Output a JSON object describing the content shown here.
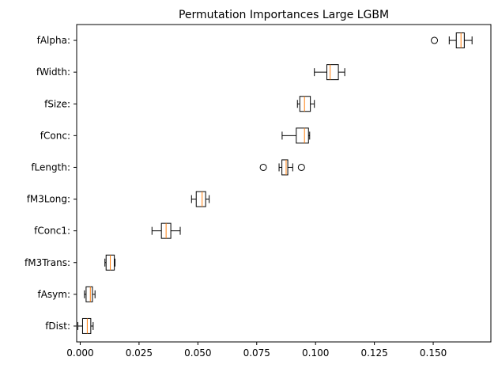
{
  "chart_data": {
    "type": "box",
    "orientation": "horizontal",
    "title": "Permutation Importances Large LGBM",
    "xlabel": "",
    "ylabel": "",
    "xlim": [
      -0.0015,
      0.1745
    ],
    "x_ticks": [
      0.0,
      0.025,
      0.05,
      0.075,
      0.1,
      0.125,
      0.15
    ],
    "x_tick_labels": [
      "0.000",
      "0.025",
      "0.050",
      "0.075",
      "0.100",
      "0.125",
      "0.150"
    ],
    "grid": false,
    "categories": [
      "fAlpha:",
      "fWidth:",
      "fSize:",
      "fConc:",
      "fLength:",
      "fM3Long:",
      "fConc1:",
      "fM3Trans:",
      "fAsym:",
      "fDist:"
    ],
    "boxes": [
      {
        "label": "fAlpha:",
        "whisker_low": 0.1568,
        "q1": 0.1598,
        "median": 0.1618,
        "q3": 0.1632,
        "whisker_high": 0.1665,
        "outliers": [
          0.1505
        ]
      },
      {
        "label": "fWidth:",
        "whisker_low": 0.0995,
        "q1": 0.1048,
        "median": 0.1062,
        "q3": 0.1097,
        "whisker_high": 0.1124,
        "outliers": []
      },
      {
        "label": "fSize:",
        "whisker_low": 0.0923,
        "q1": 0.0933,
        "median": 0.0953,
        "q3": 0.0978,
        "whisker_high": 0.0995,
        "outliers": []
      },
      {
        "label": "fConc:",
        "whisker_low": 0.0858,
        "q1": 0.0918,
        "median": 0.0953,
        "q3": 0.097,
        "whisker_high": 0.0975,
        "outliers": []
      },
      {
        "label": "fLength:",
        "whisker_low": 0.0845,
        "q1": 0.0857,
        "median": 0.0875,
        "q3": 0.0882,
        "whisker_high": 0.0903,
        "outliers": [
          0.0778,
          0.094
        ]
      },
      {
        "label": "fM3Long:",
        "whisker_low": 0.0473,
        "q1": 0.0493,
        "median": 0.0518,
        "q3": 0.0533,
        "whisker_high": 0.0548,
        "outliers": []
      },
      {
        "label": "fConc1:",
        "whisker_low": 0.0305,
        "q1": 0.0345,
        "median": 0.0365,
        "q3": 0.0385,
        "whisker_high": 0.0425,
        "outliers": []
      },
      {
        "label": "fM3Trans:",
        "whisker_low": 0.0105,
        "q1": 0.011,
        "median": 0.0128,
        "q3": 0.0145,
        "whisker_high": 0.0148,
        "outliers": []
      },
      {
        "label": "fAsym:",
        "whisker_low": 0.0018,
        "q1": 0.0025,
        "median": 0.0043,
        "q3": 0.0052,
        "whisker_high": 0.0063,
        "outliers": []
      },
      {
        "label": "fDist:",
        "whisker_low": -0.001,
        "q1": 0.001,
        "median": 0.003,
        "q3": 0.0045,
        "whisker_high": 0.0055,
        "outliers": []
      }
    ],
    "colors": {
      "box_edge": "#000000",
      "median": "#ff7f0e",
      "background": "#ffffff"
    }
  }
}
